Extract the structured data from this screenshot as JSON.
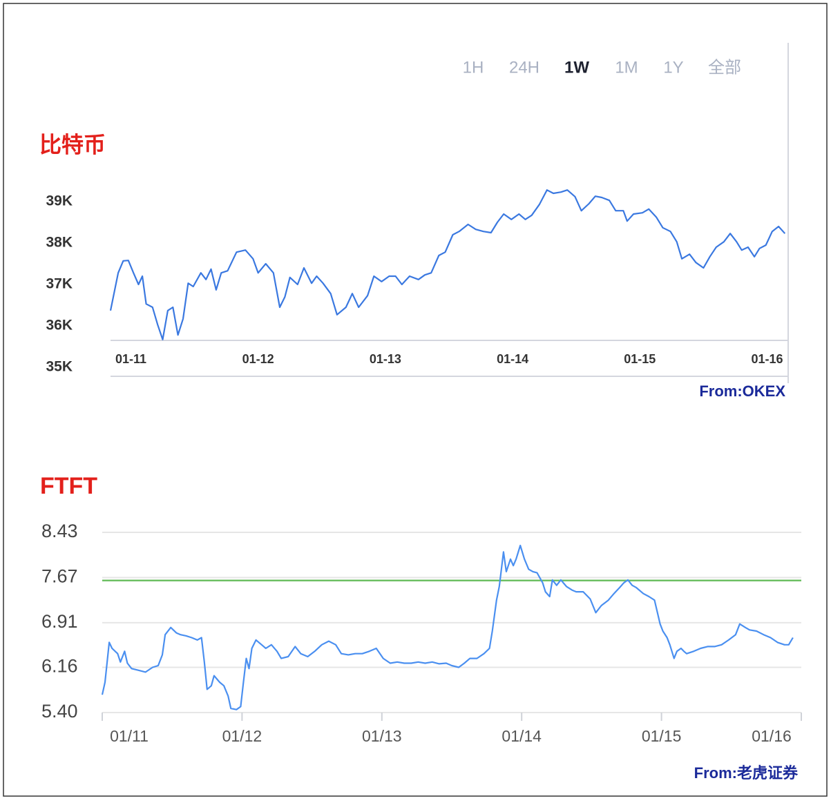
{
  "chart_data": [
    {
      "type": "line",
      "title": "比特币",
      "source": "From:OKEX",
      "tabs": [
        "1H",
        "24H",
        "1W",
        "1M",
        "1Y",
        "全部"
      ],
      "active_tab": 2,
      "xlim": [
        10.84,
        16.16
      ],
      "xticks": [
        {
          "value": 11,
          "label": "01-11"
        },
        {
          "value": 12,
          "label": "01-12"
        },
        {
          "value": 13,
          "label": "01-13"
        },
        {
          "value": 14,
          "label": "01-14"
        },
        {
          "value": 15,
          "label": "01-15"
        },
        {
          "value": 16,
          "label": "01-16"
        }
      ],
      "ylim": [
        35000,
        39500
      ],
      "yticks": [
        {
          "value": 39000,
          "label": "39K"
        },
        {
          "value": 38000,
          "label": "38K"
        },
        {
          "value": 37000,
          "label": "37K"
        },
        {
          "value": 36000,
          "label": "36K"
        },
        {
          "value": 35000,
          "label": "35K"
        }
      ],
      "grid": false,
      "x": [
        10.84,
        10.9,
        10.94,
        10.98,
        11.02,
        11.06,
        11.09,
        11.12,
        11.17,
        11.21,
        11.25,
        11.29,
        11.33,
        11.37,
        11.41,
        11.45,
        11.49,
        11.55,
        11.59,
        11.63,
        11.67,
        11.71,
        11.76,
        11.83,
        11.9,
        11.96,
        12.0,
        12.06,
        12.12,
        12.17,
        12.21,
        12.25,
        12.31,
        12.36,
        12.42,
        12.46,
        12.51,
        12.57,
        12.62,
        12.69,
        12.74,
        12.79,
        12.86,
        12.91,
        12.97,
        13.03,
        13.08,
        13.13,
        13.19,
        13.26,
        13.31,
        13.36,
        13.42,
        13.47,
        13.53,
        13.58,
        13.65,
        13.71,
        13.77,
        13.83,
        13.88,
        13.93,
        13.99,
        14.05,
        14.1,
        14.15,
        14.21,
        14.27,
        14.32,
        14.38,
        14.43,
        14.49,
        14.54,
        14.6,
        14.65,
        14.7,
        14.76,
        14.81,
        14.87,
        14.9,
        14.95,
        15.02,
        15.07,
        15.13,
        15.18,
        15.24,
        15.29,
        15.33,
        15.39,
        15.44,
        15.5,
        15.55,
        15.6,
        15.66,
        15.71,
        15.76,
        15.8,
        15.85,
        15.9,
        15.94,
        15.99,
        16.04,
        16.09,
        16.14
      ],
      "series": [
        {
          "color": "#3a78e0",
          "values": [
            36370,
            37280,
            37570,
            37580,
            37280,
            37000,
            37200,
            36530,
            36450,
            36030,
            35670,
            36370,
            36450,
            35780,
            36170,
            37030,
            36950,
            37280,
            37120,
            37370,
            36870,
            37280,
            37330,
            37780,
            37830,
            37620,
            37280,
            37500,
            37280,
            36450,
            36700,
            37170,
            37000,
            37400,
            37030,
            37200,
            37030,
            36780,
            36270,
            36450,
            36780,
            36450,
            36730,
            37200,
            37070,
            37200,
            37200,
            37000,
            37200,
            37120,
            37230,
            37280,
            37700,
            37780,
            38200,
            38280,
            38450,
            38330,
            38280,
            38250,
            38500,
            38700,
            38570,
            38700,
            38570,
            38670,
            38930,
            39280,
            39200,
            39230,
            39280,
            39120,
            38780,
            38950,
            39130,
            39100,
            39030,
            38780,
            38780,
            38530,
            38700,
            38730,
            38820,
            38620,
            38370,
            38280,
            38030,
            37620,
            37730,
            37530,
            37400,
            37670,
            37900,
            38030,
            38230,
            38030,
            37830,
            37900,
            37670,
            37870,
            37950,
            38280,
            38400,
            38230
          ]
        }
      ]
    },
    {
      "type": "line",
      "title": "FTFT",
      "source": "From:老虎证券",
      "xlim": [
        11,
        16
      ],
      "xticks": [
        {
          "value": 11,
          "label": "01/11"
        },
        {
          "value": 12,
          "label": "01/12"
        },
        {
          "value": 13,
          "label": "01/13"
        },
        {
          "value": 14,
          "label": "01/14"
        },
        {
          "value": 15,
          "label": "01/15"
        },
        {
          "value": 16,
          "label": "01/16"
        }
      ],
      "ylim": [
        5.4,
        8.43
      ],
      "yticks": [
        8.43,
        7.67,
        6.91,
        6.16,
        {
          "value": 5.4,
          "label": "5.40"
        }
      ],
      "grid": true,
      "reference_line": {
        "value": 7.62,
        "color": "#6cbf63"
      },
      "x": [
        11.0,
        11.02,
        11.05,
        11.07,
        11.11,
        11.13,
        11.16,
        11.18,
        11.21,
        11.26,
        11.31,
        11.36,
        11.4,
        11.43,
        11.45,
        11.49,
        11.53,
        11.56,
        11.6,
        11.64,
        11.68,
        11.71,
        11.73,
        11.75,
        11.78,
        11.8,
        11.84,
        11.87,
        11.9,
        11.92,
        11.96,
        11.99,
        12.01,
        12.03,
        12.05,
        12.07,
        12.1,
        12.14,
        12.17,
        12.21,
        12.25,
        12.28,
        12.33,
        12.38,
        12.42,
        12.47,
        12.52,
        12.57,
        12.62,
        12.67,
        12.71,
        12.76,
        12.81,
        12.86,
        12.91,
        12.96,
        13.01,
        13.06,
        13.11,
        13.16,
        13.21,
        13.26,
        13.31,
        13.36,
        13.41,
        13.46,
        13.5,
        13.55,
        13.59,
        13.63,
        13.68,
        13.73,
        13.77,
        13.79,
        13.82,
        13.84,
        13.87,
        13.89,
        13.92,
        13.94,
        13.96,
        13.99,
        14.02,
        14.05,
        14.08,
        14.11,
        14.15,
        14.17,
        14.2,
        14.22,
        14.25,
        14.28,
        14.32,
        14.36,
        14.39,
        14.44,
        14.49,
        14.53,
        14.57,
        14.62,
        14.66,
        14.7,
        14.73,
        14.76,
        14.79,
        14.82,
        14.87,
        14.91,
        14.95,
        14.99,
        15.01,
        15.04,
        15.06,
        15.09,
        15.11,
        15.14,
        15.16,
        15.18,
        15.23,
        15.28,
        15.33,
        15.38,
        15.43,
        15.48,
        15.53,
        15.56,
        15.6,
        15.63,
        15.68,
        15.73,
        15.78,
        15.83,
        15.88,
        15.91,
        15.94
      ],
      "series": [
        {
          "color": "#4a8ff0",
          "values": [
            5.7,
            5.91,
            6.58,
            6.48,
            6.39,
            6.25,
            6.43,
            6.23,
            6.14,
            6.11,
            6.08,
            6.16,
            6.19,
            6.37,
            6.71,
            6.83,
            6.74,
            6.71,
            6.69,
            6.66,
            6.62,
            6.66,
            6.25,
            5.79,
            5.85,
            6.02,
            5.91,
            5.85,
            5.68,
            5.47,
            5.45,
            5.5,
            5.91,
            6.31,
            6.14,
            6.48,
            6.62,
            6.54,
            6.48,
            6.54,
            6.43,
            6.31,
            6.34,
            6.51,
            6.39,
            6.34,
            6.43,
            6.54,
            6.6,
            6.54,
            6.39,
            6.37,
            6.39,
            6.39,
            6.43,
            6.48,
            6.31,
            6.23,
            6.25,
            6.23,
            6.23,
            6.25,
            6.23,
            6.25,
            6.22,
            6.23,
            6.19,
            6.16,
            6.23,
            6.31,
            6.31,
            6.39,
            6.48,
            6.77,
            7.29,
            7.52,
            8.1,
            7.77,
            7.98,
            7.87,
            7.98,
            8.21,
            7.98,
            7.81,
            7.77,
            7.75,
            7.58,
            7.43,
            7.35,
            7.63,
            7.54,
            7.63,
            7.52,
            7.46,
            7.43,
            7.43,
            7.31,
            7.08,
            7.2,
            7.29,
            7.4,
            7.5,
            7.58,
            7.63,
            7.54,
            7.5,
            7.4,
            7.35,
            7.29,
            6.89,
            6.77,
            6.66,
            6.54,
            6.31,
            6.43,
            6.48,
            6.43,
            6.39,
            6.43,
            6.48,
            6.51,
            6.51,
            6.54,
            6.62,
            6.71,
            6.89,
            6.83,
            6.79,
            6.77,
            6.71,
            6.66,
            6.58,
            6.54,
            6.54,
            6.66
          ]
        }
      ]
    }
  ]
}
